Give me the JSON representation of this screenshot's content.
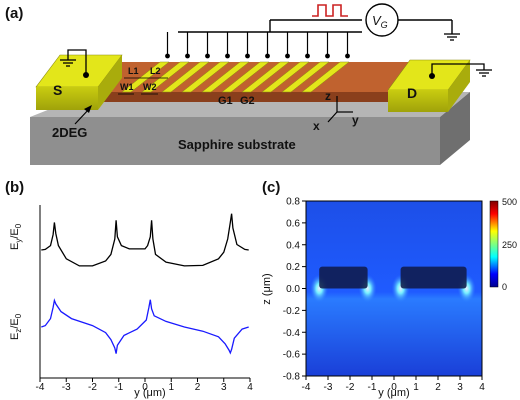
{
  "panel_a": {
    "label": "(a)",
    "source_label": "S",
    "drain_label": "D",
    "twodeg_label": "2DEG",
    "substrate_label": "Sapphire substrate",
    "gate_labels": [
      "G1",
      "G2"
    ],
    "dim_labels": [
      "L1",
      "L2",
      "W1",
      "W2"
    ],
    "axis_labels": {
      "z": "z",
      "x": "x",
      "y": "y"
    },
    "vg_label": "V",
    "vg_subscript": "G",
    "colors": {
      "contact": "#e3e61a",
      "channel": "#b4582c",
      "substrate": "#8f8f8f",
      "wire": "#000000",
      "pulse": "#cc2222"
    }
  },
  "panel_b": {
    "label": "(b)",
    "ylabel_top": "E_y/E_0",
    "ylabel_bottom": "E_z/E_0",
    "xlabel": "y (μm)",
    "xticks": [
      "-4",
      "-3",
      "-2",
      "-1",
      "0",
      "1",
      "2",
      "3",
      "4"
    ]
  },
  "panel_c": {
    "label": "(c)",
    "xlabel": "y (μm)",
    "ylabel": "z (μm)",
    "xticks": [
      "-4",
      "-3",
      "-2",
      "-1",
      "0",
      "1",
      "2",
      "3",
      "4"
    ],
    "yticks": [
      "0.8",
      "0.6",
      "0.4",
      "0.2",
      "0.0",
      "-0.2",
      "-0.4",
      "-0.6",
      "-0.8"
    ],
    "colorbar_ticks": [
      "500",
      "250",
      "0"
    ]
  },
  "chart_data": [
    {
      "type": "line",
      "panel": "b-top",
      "ylabel": "E_y/E_0",
      "xlabel": "y (μm)",
      "xlim": [
        -4,
        4
      ],
      "series": [
        {
          "color": "#000000",
          "x": [
            -3.95,
            -3.8,
            -3.6,
            -3.5,
            -3.45,
            -3.4,
            -3.3,
            -3.0,
            -2.5,
            -2.0,
            -1.5,
            -1.3,
            -1.15,
            -1.1,
            -1.05,
            -0.9,
            -0.6,
            0.0,
            0.1,
            0.2,
            0.25,
            0.3,
            0.4,
            0.8,
            1.5,
            2.2,
            2.8,
            3.0,
            3.15,
            3.25,
            3.3,
            3.35,
            3.5,
            3.8,
            3.95
          ],
          "values": [
            2.0,
            2.05,
            2.4,
            3.4,
            4.5,
            3.5,
            2.4,
            1.2,
            0.55,
            0.55,
            1.0,
            1.6,
            3.0,
            4.7,
            3.2,
            2.4,
            2.1,
            2.1,
            2.4,
            3.2,
            4.7,
            3.0,
            1.6,
            0.9,
            0.55,
            0.6,
            1.2,
            1.8,
            3.0,
            4.5,
            5.3,
            4.0,
            2.5,
            2.05,
            2.0
          ]
        }
      ]
    },
    {
      "type": "line",
      "panel": "b-bottom",
      "ylabel": "E_z/E_0",
      "xlabel": "y (μm)",
      "xlim": [
        -4,
        4
      ],
      "series": [
        {
          "color": "#1a1aff",
          "x": [
            -3.95,
            -3.8,
            -3.6,
            -3.5,
            -3.45,
            -3.4,
            -3.2,
            -2.8,
            -2.0,
            -1.5,
            -1.3,
            -1.15,
            -1.1,
            -1.05,
            -0.8,
            -0.3,
            0.05,
            0.15,
            0.2,
            0.25,
            0.35,
            0.8,
            1.5,
            2.2,
            2.8,
            3.05,
            3.2,
            3.25,
            3.3,
            3.4,
            3.7,
            3.95
          ],
          "values": [
            0.0,
            0.2,
            1.2,
            2.8,
            3.8,
            3.3,
            2.2,
            1.2,
            0.2,
            -0.8,
            -1.8,
            -3.0,
            -3.8,
            -2.6,
            -1.2,
            -0.3,
            1.0,
            2.8,
            3.9,
            2.6,
            1.6,
            0.8,
            0.0,
            -0.6,
            -1.4,
            -2.4,
            -3.3,
            -3.7,
            -3.2,
            -1.6,
            -0.3,
            0.0
          ]
        }
      ]
    },
    {
      "type": "heatmap",
      "panel": "c",
      "xlabel": "y (μm)",
      "ylabel": "z (μm)",
      "xlim": [
        -4,
        4
      ],
      "ylim": [
        -0.8,
        0.8
      ],
      "colorbar_range": [
        0,
        500
      ],
      "gates": [
        {
          "y_range": [
            -3.4,
            -1.2
          ],
          "z_range": [
            0.0,
            0.2
          ]
        },
        {
          "y_range": [
            0.3,
            3.3
          ],
          "z_range": [
            0.0,
            0.2
          ]
        }
      ],
      "hotspots_y": [
        -3.4,
        -1.2,
        0.3,
        3.3
      ]
    }
  ]
}
